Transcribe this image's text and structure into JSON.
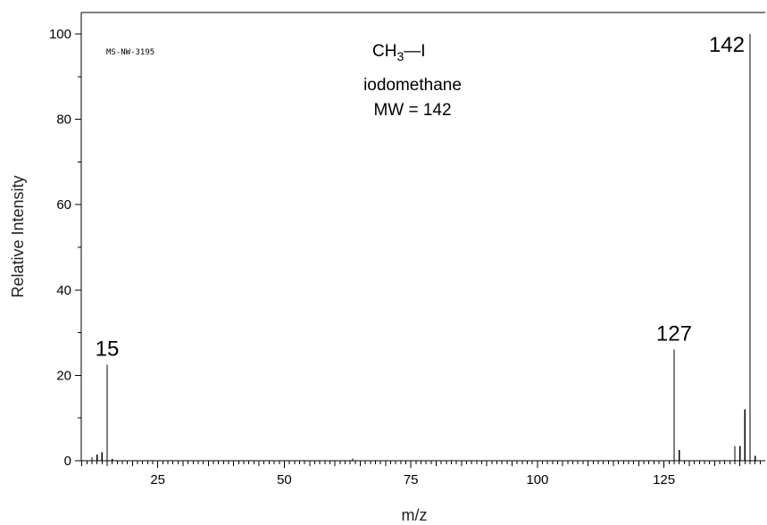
{
  "chart_data": {
    "type": "bar",
    "title": "iodomethane",
    "formula": {
      "left": "CH",
      "subscript": "3",
      "bond": "—",
      "right": "I"
    },
    "molecular_weight": "MW = 142",
    "spectrum_id": "MS-NW-3195",
    "xlabel": "m/z",
    "ylabel": "Relative Intensity",
    "xlim": [
      10,
      144
    ],
    "ylim": [
      0,
      100
    ],
    "x_ticks": [
      25,
      50,
      75,
      100,
      125
    ],
    "y_ticks": [
      0,
      20,
      40,
      60,
      80,
      100
    ],
    "peaks": [
      {
        "mz": 12,
        "intensity": 0.8
      },
      {
        "mz": 13,
        "intensity": 1.5
      },
      {
        "mz": 14,
        "intensity": 2.0
      },
      {
        "mz": 15,
        "intensity": 22.5
      },
      {
        "mz": 16,
        "intensity": 0.4
      },
      {
        "mz": 63.5,
        "intensity": 0.5
      },
      {
        "mz": 127,
        "intensity": 26.0
      },
      {
        "mz": 128,
        "intensity": 2.5
      },
      {
        "mz": 139,
        "intensity": 3.5
      },
      {
        "mz": 140,
        "intensity": 3.5
      },
      {
        "mz": 141,
        "intensity": 12.0
      },
      {
        "mz": 142,
        "intensity": 100.0
      },
      {
        "mz": 143,
        "intensity": 1.2
      }
    ],
    "peak_labels": [
      {
        "mz": 15,
        "intensity": 22.5,
        "text": "15"
      },
      {
        "mz": 127,
        "intensity": 26.0,
        "text": "127"
      },
      {
        "mz": 142,
        "intensity": 100.0,
        "text": "142"
      }
    ],
    "grid": false,
    "legend": "none"
  }
}
